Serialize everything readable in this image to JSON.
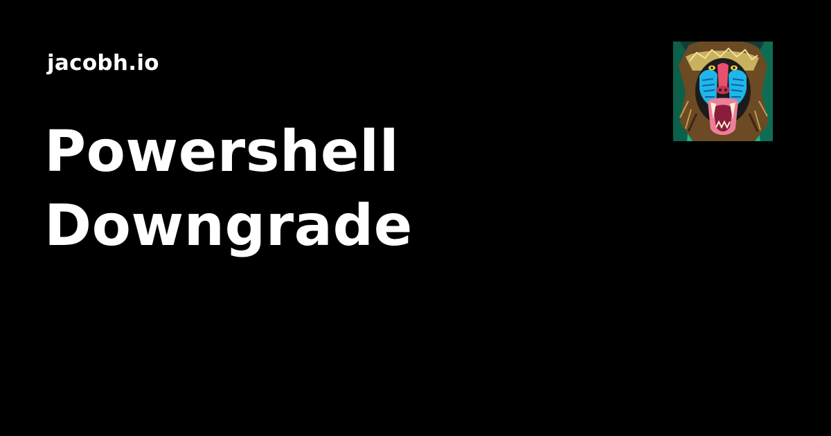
{
  "site": {
    "name": "jacobh.io"
  },
  "post": {
    "title_lines": [
      "Powershell",
      "Downgrade"
    ]
  },
  "avatar": {
    "icon": "mandrill-illustration",
    "colors": {
      "background": "#19b88e",
      "muzzle": "#e9506e",
      "cheeks": "#1fb6e8",
      "mouth": "#ef7e9d",
      "fur": "#6b4a24",
      "face": "#1b1b1b"
    }
  }
}
